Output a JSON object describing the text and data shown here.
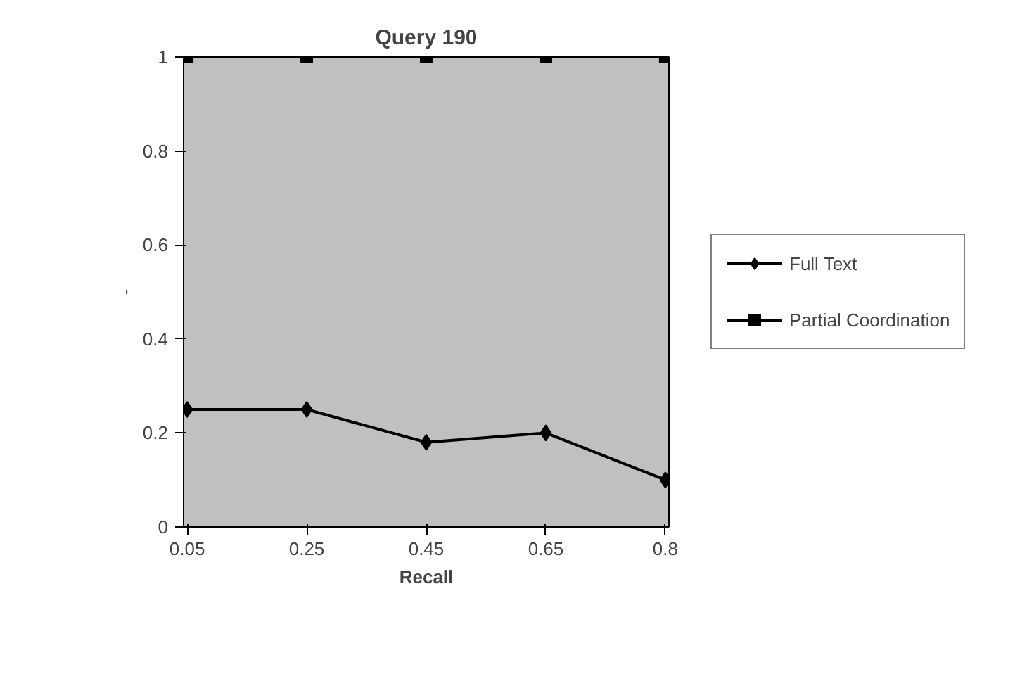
{
  "chart_data": {
    "type": "line",
    "title": "Query 190",
    "xlabel": "Recall",
    "ylabel": "-",
    "categories": [
      "0.05",
      "0.25",
      "0.45",
      "0.65",
      "0.8"
    ],
    "series": [
      {
        "name": "Full Text",
        "color": "#000000",
        "values": [
          0.25,
          0.25,
          0.18,
          0.2,
          0.1
        ],
        "marker": "diamond"
      },
      {
        "name": "Partial Coordination",
        "color": "#000000",
        "values": [
          1,
          1,
          1,
          1,
          1
        ],
        "marker": "square"
      }
    ],
    "ylim": [
      0,
      1
    ],
    "yticks": [
      0,
      0.2,
      0.4,
      0.6,
      0.8,
      1
    ],
    "grid": false,
    "legend": "right",
    "line_style": "solid"
  }
}
